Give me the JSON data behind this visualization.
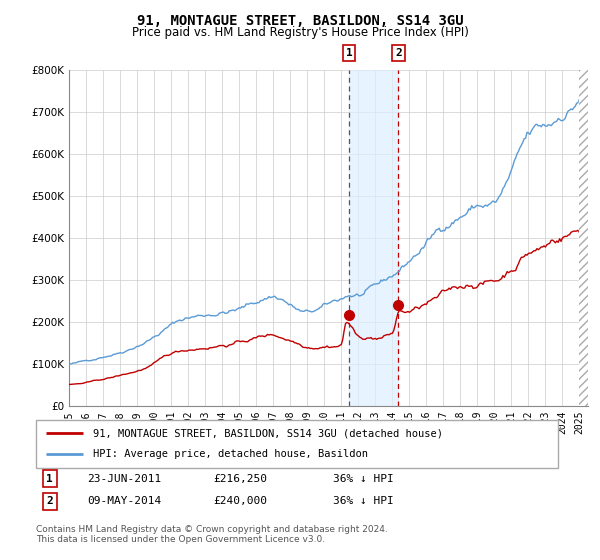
{
  "title": "91, MONTAGUE STREET, BASILDON, SS14 3GU",
  "subtitle": "Price paid vs. HM Land Registry's House Price Index (HPI)",
  "ylim": [
    0,
    800000
  ],
  "yticks": [
    0,
    100000,
    200000,
    300000,
    400000,
    500000,
    600000,
    700000,
    800000
  ],
  "ytick_labels": [
    "£0",
    "£100K",
    "£200K",
    "£300K",
    "£400K",
    "£500K",
    "£600K",
    "£700K",
    "£800K"
  ],
  "xlim_left": 1995.0,
  "xlim_right": 2025.5,
  "xtick_years": [
    1995,
    1996,
    1997,
    1998,
    1999,
    2000,
    2001,
    2002,
    2003,
    2004,
    2005,
    2006,
    2007,
    2008,
    2009,
    2010,
    2011,
    2012,
    2013,
    2014,
    2015,
    2016,
    2017,
    2018,
    2019,
    2020,
    2021,
    2022,
    2023,
    2024,
    2025
  ],
  "hpi_color": "#5b9bd5",
  "price_color": "#c00000",
  "shade_color": "#ddeeff",
  "shade_alpha": 0.7,
  "transaction1_date": 2011.47,
  "transaction1_price": 216250,
  "transaction2_date": 2014.36,
  "transaction2_price": 240000,
  "legend_label_red": "91, MONTAGUE STREET, BASILDON, SS14 3GU (detached house)",
  "legend_label_blue": "HPI: Average price, detached house, Basildon",
  "footer1": "Contains HM Land Registry data © Crown copyright and database right 2024.",
  "footer2": "This data is licensed under the Open Government Licence v3.0.",
  "table_row1": [
    "1",
    "23-JUN-2011",
    "£216,250",
    "36% ↓ HPI"
  ],
  "table_row2": [
    "2",
    "09-MAY-2014",
    "£240,000",
    "36% ↓ HPI"
  ]
}
